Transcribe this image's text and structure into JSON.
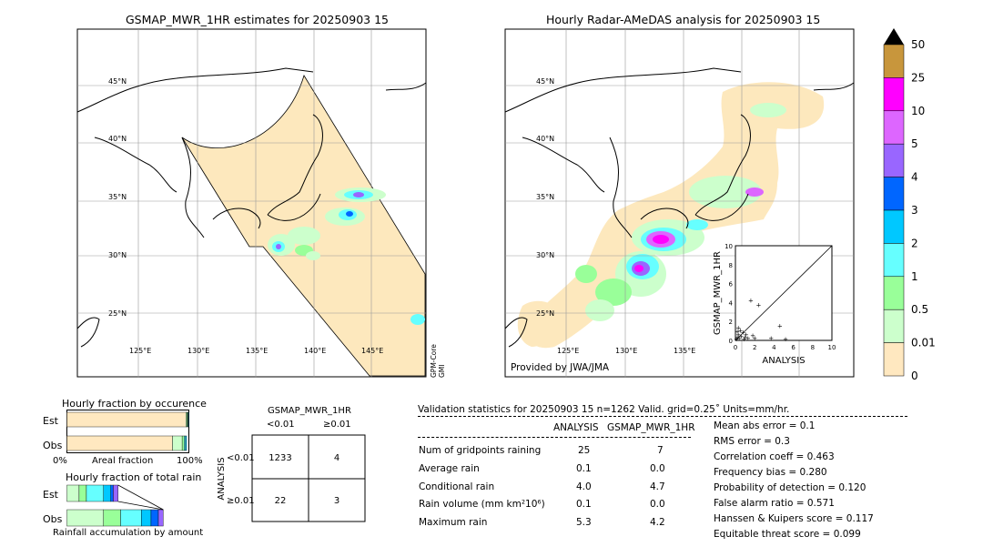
{
  "left_map": {
    "title": "GSMAP_MWR_1HR estimates for 20250903 15",
    "lat_labels": [
      "45°N",
      "40°N",
      "35°N",
      "30°N",
      "25°N"
    ],
    "lon_labels": [
      "125°E",
      "130°E",
      "135°E",
      "140°E",
      "145°E"
    ],
    "side_label_1": "GPM-Core",
    "side_label_2": "GMI"
  },
  "right_map": {
    "title": "Hourly Radar-AMeDAS analysis for 20250903 15",
    "lat_labels": [
      "45°N",
      "40°N",
      "35°N",
      "30°N",
      "25°N"
    ],
    "lon_labels": [
      "125°E",
      "130°E",
      "135°E"
    ],
    "credit": "Provided by JWA/JMA"
  },
  "scatter_inset": {
    "xlabel": "ANALYSIS",
    "ylabel": "GSMAP_MWR_1HR",
    "ticks": [
      "0",
      "2",
      "4",
      "6",
      "8",
      "10"
    ]
  },
  "colorbar": {
    "labels": [
      "50",
      "25",
      "10",
      "5",
      "4",
      "3",
      "2",
      "1",
      "0.5",
      "0.01",
      "0"
    ],
    "colors": [
      "#c8963c",
      "#ff00ff",
      "#dd66ff",
      "#9966ff",
      "#0066ff",
      "#00c8ff",
      "#66ffff",
      "#99ff99",
      "#ccffcc",
      "#ffe8c0"
    ]
  },
  "occurrence": {
    "title": "Hourly fraction by occurence",
    "est_label": "Est",
    "obs_label": "Obs",
    "axis_left": "0%",
    "axis_mid": "Areal fraction",
    "axis_right": "100%"
  },
  "total_rain": {
    "title": "Hourly fraction of total rain",
    "est_label": "Est",
    "obs_label": "Obs",
    "caption": "Rainfall accumulation by amount"
  },
  "contingency": {
    "title": "GSMAP_MWR_1HR",
    "col1": "<0.01",
    "col2": "≥0.01",
    "row_axis": "ANALYSIS",
    "row1": "<0.01",
    "row2": "≥0.01",
    "cells": [
      "1233",
      "4",
      "22",
      "3"
    ]
  },
  "validation": {
    "header": "Validation statistics for 20250903 15  n=1262 Valid. grid=0.25˚ Units=mm/hr.",
    "col_analysis": "ANALYSIS",
    "col_gsmap": "GSMAP_MWR_1HR",
    "rows": [
      {
        "label": "Num of gridpoints raining",
        "a": "25",
        "g": "7"
      },
      {
        "label": "Average rain",
        "a": "0.1",
        "g": "0.0"
      },
      {
        "label": "Conditional rain",
        "a": "4.0",
        "g": "4.7"
      },
      {
        "label": "Rain volume (mm km²10⁶)",
        "a": "0.1",
        "g": "0.0"
      },
      {
        "label": "Maximum rain",
        "a": "5.3",
        "g": "4.2"
      }
    ],
    "scores": [
      "Mean abs error =    0.1",
      "RMS error =    0.3",
      "Correlation coeff =  0.463",
      "Frequency bias =  0.280",
      "Probability of detection =  0.120",
      "False alarm ratio =  0.571",
      "Hanssen & Kuipers score =  0.117",
      "Equitable threat score =  0.099"
    ]
  },
  "chart_data": [
    {
      "type": "scatter",
      "xlabel": "ANALYSIS",
      "ylabel": "GSMAP_MWR_1HR",
      "xlim": [
        0,
        10
      ],
      "ylim": [
        0,
        10
      ],
      "points": [
        [
          0.1,
          0.1
        ],
        [
          0.2,
          0.3
        ],
        [
          0.3,
          0.6
        ],
        [
          0.4,
          0.2
        ],
        [
          0.5,
          1.0
        ],
        [
          0.6,
          0.4
        ],
        [
          0.8,
          0.8
        ],
        [
          1.0,
          0.3
        ],
        [
          1.1,
          0.6
        ],
        [
          1.3,
          0.2
        ],
        [
          1.6,
          4.2
        ],
        [
          2.0,
          0.2
        ],
        [
          2.4,
          3.7
        ],
        [
          3.7,
          0.2
        ],
        [
          4.6,
          1.5
        ],
        [
          0.3,
          1.3
        ],
        [
          0.2,
          0.9
        ],
        [
          1.8,
          0.5
        ],
        [
          5.2,
          0.1
        ],
        [
          0.9,
          0.1
        ]
      ]
    },
    {
      "type": "bar",
      "title": "Hourly fraction by occurence",
      "categories": [
        "Est",
        "Obs"
      ],
      "series": [
        {
          "name": "0",
          "values": [
            97.6,
            86.5
          ]
        },
        {
          "name": "0.01",
          "values": [
            0.8,
            8.0
          ]
        },
        {
          "name": "0.5",
          "values": [
            0.8,
            1.6
          ]
        },
        {
          "name": "1",
          "values": [
            0.4,
            1.2
          ]
        },
        {
          "name": "2",
          "values": [
            0.4,
            0.8
          ]
        }
      ]
    },
    {
      "type": "bar",
      "title": "Hourly fraction of total rain",
      "categories": [
        "Est",
        "Obs"
      ],
      "series": [
        {
          "name": "0.01",
          "values": [
            10,
            30
          ]
        },
        {
          "name": "0.5",
          "values": [
            6,
            14
          ]
        },
        {
          "name": "1",
          "values": [
            14,
            17
          ]
        },
        {
          "name": "2",
          "values": [
            6,
            8
          ]
        },
        {
          "name": "3",
          "values": [
            2,
            6
          ]
        },
        {
          "name": "4",
          "values": [
            4,
            4
          ]
        }
      ]
    }
  ]
}
